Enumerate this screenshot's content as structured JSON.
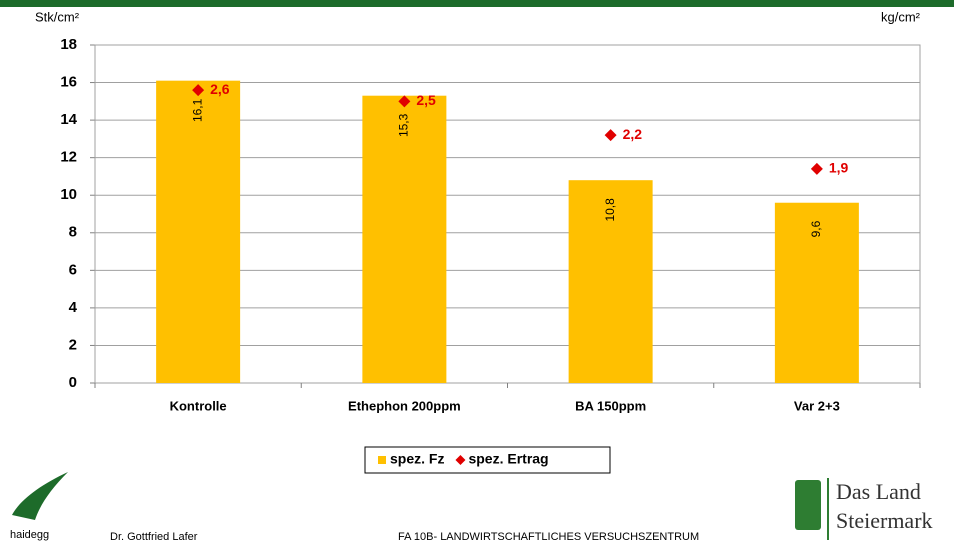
{
  "chart_data": {
    "type": "bar",
    "ylabel": "Stk/cm²",
    "y2label": "kg/cm²",
    "categories": [
      "Kontrolle",
      "Ethephon 200ppm",
      "BA 150ppm",
      "Var 2+3"
    ],
    "series": [
      {
        "name": "spez. Fz",
        "type": "bar",
        "color": "#ffc000",
        "values": [
          16.1,
          15.3,
          10.8,
          9.6
        ],
        "value_labels": [
          "16,1",
          "15,3",
          "10,8",
          "9,6"
        ]
      },
      {
        "name": "spez. Ertrag",
        "type": "scatter",
        "axis": "y2",
        "color": "#e00000",
        "values": [
          2.6,
          2.5,
          2.2,
          1.9
        ],
        "value_labels": [
          "2,6",
          "2,5",
          "2,2",
          "1,9"
        ]
      }
    ],
    "ylim": [
      0,
      18
    ],
    "yticks": [
      0,
      2,
      4,
      6,
      8,
      10,
      12,
      14,
      16,
      18
    ],
    "y2lim": [
      0,
      3
    ],
    "grid": true,
    "legend": "bottom"
  },
  "footer": {
    "logo_left": "haidegg",
    "author": "Dr. Gottfried Lafer",
    "institution": "FA 10B- LANDWIRTSCHAFTLICHES VERSUCHSZENTRUM",
    "logo_right": [
      "Das Land",
      "Steiermark"
    ]
  }
}
